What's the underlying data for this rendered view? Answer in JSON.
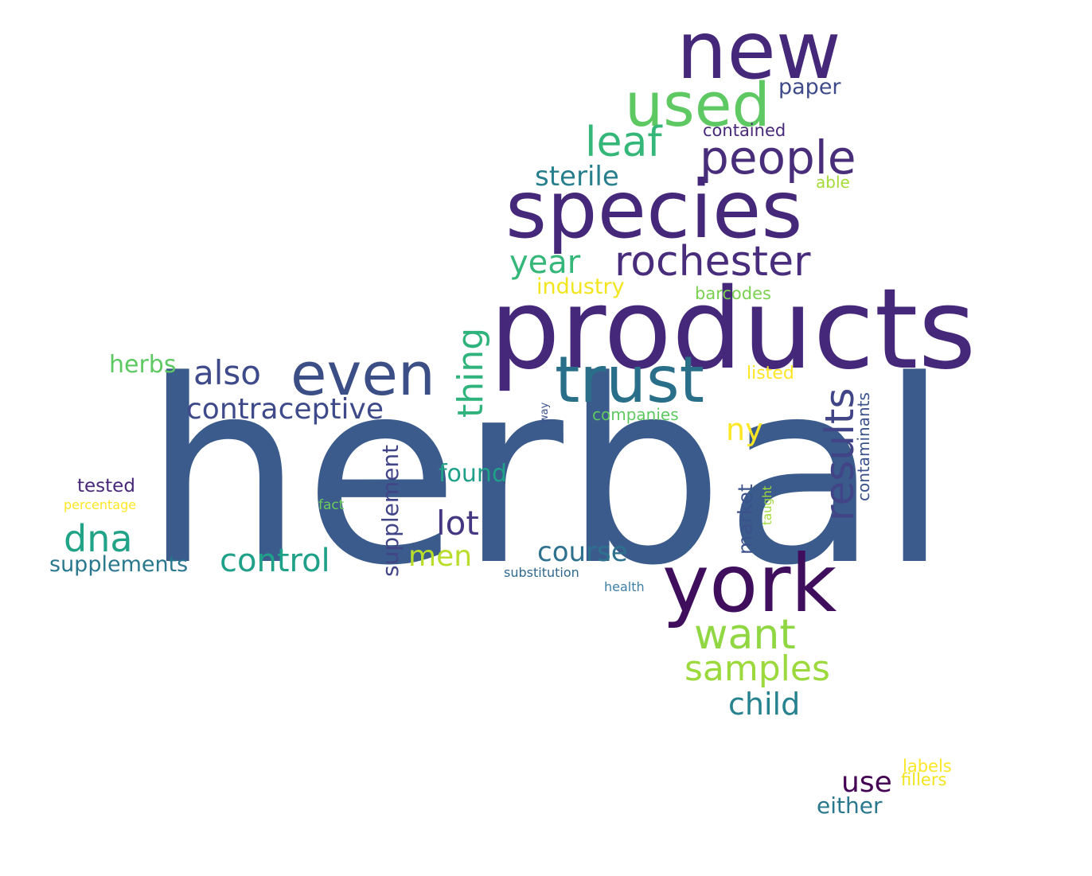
{
  "words": [
    {
      "text": "herbal",
      "color": "#3b5b8c"
    },
    {
      "text": "products",
      "color": "#46287a"
    },
    {
      "text": "species",
      "color": "#46287a"
    },
    {
      "text": "york",
      "color": "#3f0f5e"
    },
    {
      "text": "new",
      "color": "#46287a"
    },
    {
      "text": "used",
      "color": "#5ec962"
    },
    {
      "text": "trust",
      "color": "#2a6f8a"
    },
    {
      "text": "even",
      "color": "#3b4f86"
    },
    {
      "text": "people",
      "color": "#482d7b"
    },
    {
      "text": "rochester",
      "color": "#472d7b"
    },
    {
      "text": "results",
      "color": "#414487"
    },
    {
      "text": "leaf",
      "color": "#35b779"
    },
    {
      "text": "want",
      "color": "#90d743"
    },
    {
      "text": "samples",
      "color": "#9bd93c"
    },
    {
      "text": "also",
      "color": "#3e4a89"
    },
    {
      "text": "contraceptive",
      "color": "#3e4a89"
    },
    {
      "text": "thing",
      "color": "#2eb37c"
    },
    {
      "text": "dna",
      "color": "#20a386"
    },
    {
      "text": "control",
      "color": "#1fa088"
    },
    {
      "text": "lot",
      "color": "#453781"
    },
    {
      "text": "child",
      "color": "#26828e"
    },
    {
      "text": "year",
      "color": "#35b779"
    },
    {
      "text": "sterile",
      "color": "#277f8e"
    },
    {
      "text": "course",
      "color": "#2d718e"
    },
    {
      "text": "men",
      "color": "#b8de29"
    },
    {
      "text": "use",
      "color": "#440154"
    },
    {
      "text": "herbs",
      "color": "#5ec962"
    },
    {
      "text": "supplement",
      "color": "#414487"
    },
    {
      "text": "ny",
      "color": "#fde725"
    },
    {
      "text": "found",
      "color": "#1fa088"
    },
    {
      "text": "supplements",
      "color": "#2a788e"
    },
    {
      "text": "market",
      "color": "#3b528b"
    },
    {
      "text": "either",
      "color": "#2a788e"
    },
    {
      "text": "industry",
      "color": "#f2e51d"
    },
    {
      "text": "paper",
      "color": "#3e4a89"
    },
    {
      "text": "contaminants",
      "color": "#3b528b"
    },
    {
      "text": "tested",
      "color": "#482878"
    },
    {
      "text": "barcodes",
      "color": "#7ad151"
    },
    {
      "text": "listed",
      "color": "#fde725"
    },
    {
      "text": "companies",
      "color": "#5ec962"
    },
    {
      "text": "contained",
      "color": "#482878"
    },
    {
      "text": "labels",
      "color": "#fde725"
    },
    {
      "text": "fillers",
      "color": "#f1e51d"
    },
    {
      "text": "able",
      "color": "#a5db36"
    },
    {
      "text": "percentage",
      "color": "#fde725"
    },
    {
      "text": "fact",
      "color": "#6ccd5a"
    },
    {
      "text": "taught",
      "color": "#9fda3a"
    },
    {
      "text": "substitution",
      "color": "#31688e"
    },
    {
      "text": "health",
      "color": "#3e7fa6"
    },
    {
      "text": "way",
      "color": "#3b528b"
    }
  ]
}
